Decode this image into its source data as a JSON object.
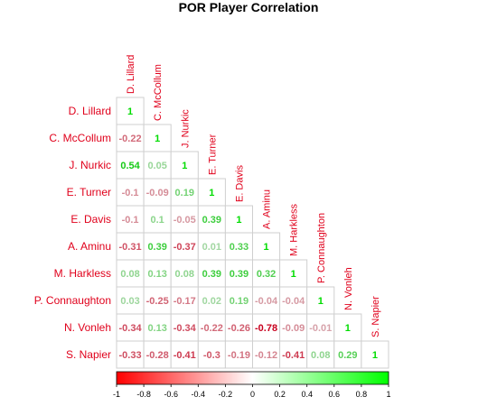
{
  "chart_data": {
    "type": "heatmap",
    "title": "POR Player Correlation",
    "players": [
      "D. Lillard",
      "C. McCollum",
      "J. Nurkic",
      "E. Turner",
      "E. Davis",
      "A. Aminu",
      "M. Harkless",
      "P. Connaughton",
      "N. Vonleh",
      "S. Napier"
    ],
    "matrix": [
      [
        1
      ],
      [
        -0.22,
        1
      ],
      [
        0.54,
        0.05,
        1
      ],
      [
        -0.1,
        -0.09,
        0.19,
        1
      ],
      [
        -0.1,
        0.1,
        -0.05,
        0.39,
        1
      ],
      [
        -0.31,
        0.39,
        -0.37,
        0.01,
        0.33,
        1
      ],
      [
        0.08,
        0.13,
        0.08,
        0.39,
        0.39,
        0.32,
        1
      ],
      [
        0.03,
        -0.25,
        -0.17,
        0.02,
        0.19,
        -0.04,
        -0.04,
        1
      ],
      [
        -0.34,
        0.13,
        -0.34,
        -0.22,
        -0.26,
        -0.78,
        -0.09,
        -0.01,
        1
      ],
      [
        -0.33,
        -0.28,
        -0.41,
        -0.3,
        -0.19,
        -0.12,
        -0.41,
        0.08,
        0.29,
        1
      ]
    ],
    "color_range": [
      -1,
      1
    ],
    "colorbar_ticks": [
      -1,
      -0.8,
      -0.6,
      -0.4,
      -0.2,
      0,
      0.2,
      0.4,
      0.6,
      0.8,
      1
    ],
    "colors": {
      "negative": "#ff0000",
      "neutral": "#ffffff",
      "positive": "#00ff00",
      "label": "#e0001b"
    },
    "legend_position": "bottom"
  }
}
